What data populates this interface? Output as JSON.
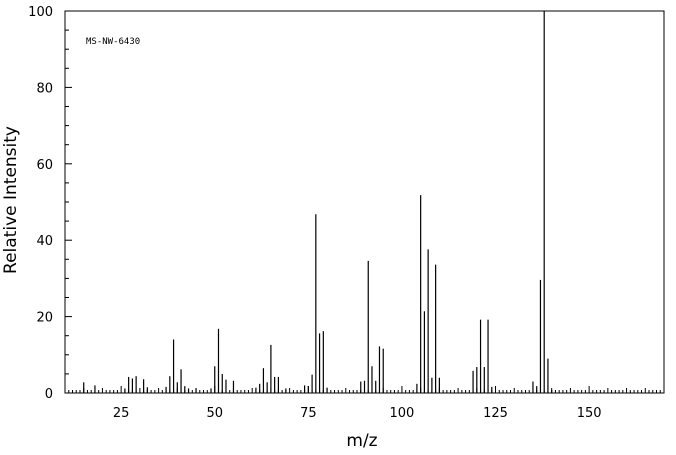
{
  "chart_data": {
    "type": "bar",
    "title": "",
    "annotation": "MS-NW-6430",
    "xlabel": "m/z",
    "ylabel": "Relative Intensity",
    "xlim": [
      10,
      170
    ],
    "ylim": [
      0,
      100
    ],
    "x_ticks": [
      25,
      50,
      75,
      100,
      125,
      150
    ],
    "y_ticks": [
      0,
      20,
      40,
      60,
      80,
      100
    ],
    "grid": false,
    "colors": {
      "stick": "#000000",
      "axis": "#000000",
      "background": "#ffffff"
    },
    "peaks": [
      {
        "x": 15,
        "y": 2.8
      },
      {
        "x": 18,
        "y": 2.0
      },
      {
        "x": 26,
        "y": 1.2
      },
      {
        "x": 27,
        "y": 4.2
      },
      {
        "x": 28,
        "y": 3.8
      },
      {
        "x": 29,
        "y": 4.4
      },
      {
        "x": 31,
        "y": 3.6
      },
      {
        "x": 32,
        "y": 1.5
      },
      {
        "x": 37,
        "y": 1.6
      },
      {
        "x": 38,
        "y": 4.4
      },
      {
        "x": 39,
        "y": 14.0
      },
      {
        "x": 40,
        "y": 2.8
      },
      {
        "x": 41,
        "y": 6.2
      },
      {
        "x": 42,
        "y": 1.8
      },
      {
        "x": 43,
        "y": 1.2
      },
      {
        "x": 45,
        "y": 1.2
      },
      {
        "x": 49,
        "y": 1.2
      },
      {
        "x": 50,
        "y": 7.0
      },
      {
        "x": 51,
        "y": 16.8
      },
      {
        "x": 52,
        "y": 5.0
      },
      {
        "x": 53,
        "y": 3.5
      },
      {
        "x": 55,
        "y": 3.2
      },
      {
        "x": 61,
        "y": 1.4
      },
      {
        "x": 62,
        "y": 2.4
      },
      {
        "x": 63,
        "y": 6.5
      },
      {
        "x": 64,
        "y": 2.8
      },
      {
        "x": 65,
        "y": 12.6
      },
      {
        "x": 66,
        "y": 4.2
      },
      {
        "x": 67,
        "y": 4.2
      },
      {
        "x": 69,
        "y": 1.2
      },
      {
        "x": 74,
        "y": 2.0
      },
      {
        "x": 75,
        "y": 1.8
      },
      {
        "x": 76,
        "y": 4.8
      },
      {
        "x": 77,
        "y": 46.8
      },
      {
        "x": 78,
        "y": 15.6
      },
      {
        "x": 79,
        "y": 16.2
      },
      {
        "x": 80,
        "y": 1.4
      },
      {
        "x": 89,
        "y": 3.0
      },
      {
        "x": 90,
        "y": 3.2
      },
      {
        "x": 91,
        "y": 34.6
      },
      {
        "x": 92,
        "y": 7.0
      },
      {
        "x": 93,
        "y": 3.2
      },
      {
        "x": 94,
        "y": 12.2
      },
      {
        "x": 95,
        "y": 11.6
      },
      {
        "x": 104,
        "y": 2.4
      },
      {
        "x": 105,
        "y": 51.8
      },
      {
        "x": 106,
        "y": 21.4
      },
      {
        "x": 107,
        "y": 37.6
      },
      {
        "x": 108,
        "y": 4.0
      },
      {
        "x": 109,
        "y": 33.6
      },
      {
        "x": 110,
        "y": 4.0
      },
      {
        "x": 119,
        "y": 5.8
      },
      {
        "x": 120,
        "y": 6.8
      },
      {
        "x": 121,
        "y": 19.2
      },
      {
        "x": 122,
        "y": 6.8
      },
      {
        "x": 123,
        "y": 19.2
      },
      {
        "x": 124,
        "y": 1.6
      },
      {
        "x": 135,
        "y": 3.0
      },
      {
        "x": 136,
        "y": 1.8
      },
      {
        "x": 137,
        "y": 29.6
      },
      {
        "x": 138,
        "y": 100.0
      },
      {
        "x": 139,
        "y": 9.0
      },
      {
        "x": 140,
        "y": 0.8
      }
    ]
  }
}
